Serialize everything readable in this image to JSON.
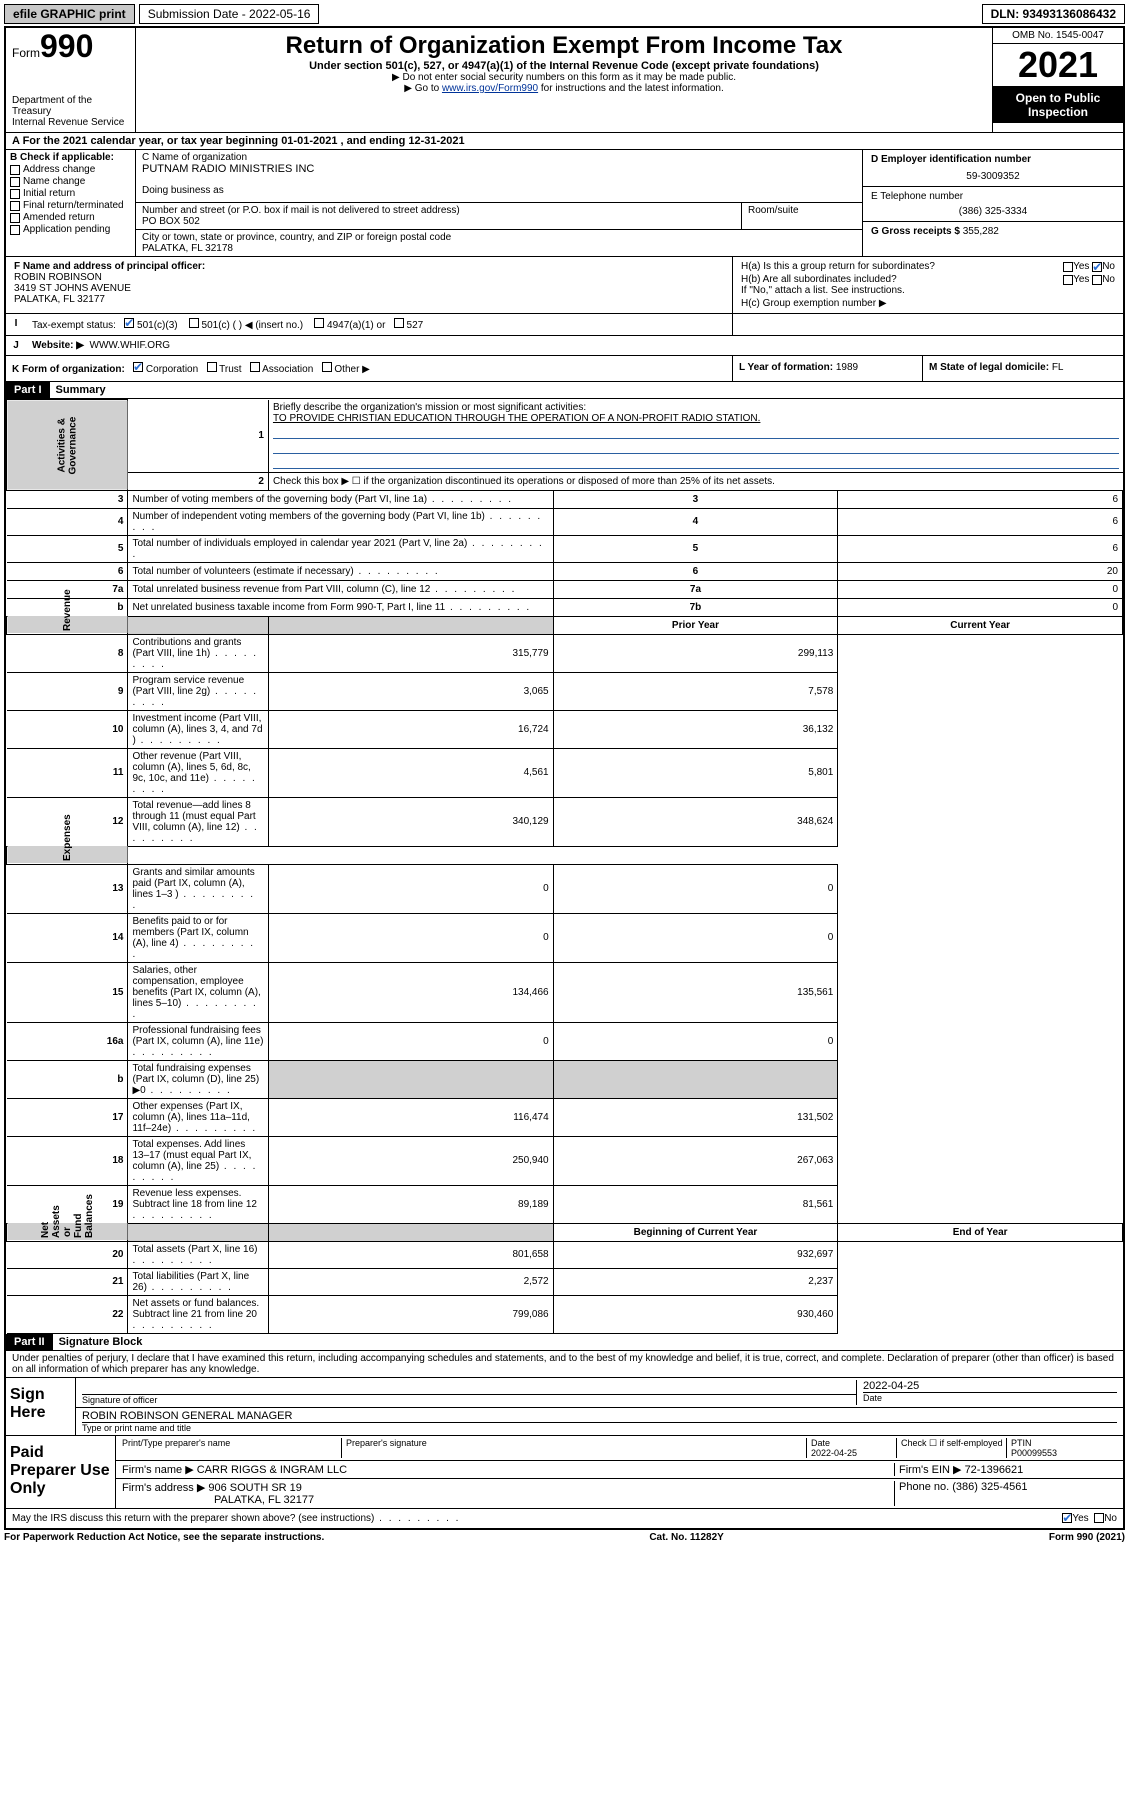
{
  "topbar": {
    "efile_label": "efile GRAPHIC print",
    "submission_label": "Submission Date - 2022-05-16",
    "dln_label": "DLN: 93493136086432"
  },
  "header": {
    "form_word": "Form",
    "form_num": "990",
    "dept": "Department of the Treasury",
    "irs": "Internal Revenue Service",
    "title": "Return of Organization Exempt From Income Tax",
    "sub1": "Under section 501(c), 527, or 4947(a)(1) of the Internal Revenue Code (except private foundations)",
    "sub2": "▶ Do not enter social security numbers on this form as it may be made public.",
    "sub3_pre": "▶ Go to ",
    "sub3_link": "www.irs.gov/Form990",
    "sub3_post": " for instructions and the latest information.",
    "omb": "OMB No. 1545-0047",
    "year": "2021",
    "open1": "Open to Public",
    "open2": "Inspection"
  },
  "row_a": "A For the 2021 calendar year, or tax year beginning 01-01-2021   , and ending 12-31-2021",
  "col_b": {
    "hdr": "B Check if applicable:",
    "items": [
      "Address change",
      "Name change",
      "Initial return",
      "Final return/terminated",
      "Amended return",
      "Application pending"
    ]
  },
  "col_c": {
    "name_lbl": "C Name of organization",
    "name": "PUTNAM RADIO MINISTRIES INC",
    "dba_lbl": "Doing business as",
    "street_lbl": "Number and street (or P.O. box if mail is not delivered to street address)",
    "room_lbl": "Room/suite",
    "street": "PO BOX 502",
    "city_lbl": "City or town, state or province, country, and ZIP or foreign postal code",
    "city": "PALATKA, FL  32178"
  },
  "col_d": {
    "ein_lbl": "D Employer identification number",
    "ein": "59-3009352",
    "tel_lbl": "E Telephone number",
    "tel": "(386) 325-3334",
    "gross_lbl": "G Gross receipts $ ",
    "gross": "355,282"
  },
  "col_f": {
    "lbl": "F  Name and address of principal officer:",
    "name": "ROBIN ROBINSON",
    "addr1": "3419 ST JOHNS AVENUE",
    "addr2": "PALATKA, FL  32177"
  },
  "col_h": {
    "ha": "H(a)  Is this a group return for subordinates?",
    "hb": "H(b)  Are all subordinates included?",
    "hb_note": "If \"No,\" attach a list. See instructions.",
    "hc": "H(c)  Group exemption number ▶",
    "yes": "Yes",
    "no": "No"
  },
  "row_i": {
    "lbl": "Tax-exempt status:",
    "c3": "501(c)(3)",
    "c": "501(c) (   ) ◀ (insert no.)",
    "a1": "4947(a)(1) or",
    "s527": "527"
  },
  "row_j": {
    "lbl": "Website: ▶",
    "val": "WWW.WHIF.ORG"
  },
  "row_k": {
    "lbl": "K Form of organization:",
    "corp": "Corporation",
    "trust": "Trust",
    "assoc": "Association",
    "other": "Other ▶",
    "year_lbl": "L Year of formation: ",
    "year": "1989",
    "state_lbl": "M State of legal domicile: ",
    "state": "FL"
  },
  "part1": {
    "hdr": "Part I",
    "title": "Summary",
    "q1": "Briefly describe the organization's mission or most significant activities:",
    "mission": "TO PROVIDE CHRISTIAN EDUCATION THROUGH THE OPERATION OF A NON-PROFIT RADIO STATION.",
    "q2": "Check this box ▶ ☐  if the organization discontinued its operations or disposed of more than 25% of its net assets.",
    "side_ag": "Activities & Governance",
    "side_rev": "Revenue",
    "side_exp": "Expenses",
    "side_nab": "Net Assets or Fund Balances",
    "rows_ag": [
      {
        "n": "3",
        "d": "Number of voting members of the governing body (Part VI, line 1a)",
        "box": "3",
        "v": "6"
      },
      {
        "n": "4",
        "d": "Number of independent voting members of the governing body (Part VI, line 1b)",
        "box": "4",
        "v": "6"
      },
      {
        "n": "5",
        "d": "Total number of individuals employed in calendar year 2021 (Part V, line 2a)",
        "box": "5",
        "v": "6"
      },
      {
        "n": "6",
        "d": "Total number of volunteers (estimate if necessary)",
        "box": "6",
        "v": "20"
      },
      {
        "n": "7a",
        "d": "Total unrelated business revenue from Part VIII, column (C), line 12",
        "box": "7a",
        "v": "0"
      },
      {
        "n": "b",
        "d": "Net unrelated business taxable income from Form 990-T, Part I, line 11",
        "box": "7b",
        "v": "0"
      }
    ],
    "col_prior": "Prior Year",
    "col_curr": "Current Year",
    "rows_rev": [
      {
        "n": "8",
        "d": "Contributions and grants (Part VIII, line 1h)",
        "p": "315,779",
        "c": "299,113"
      },
      {
        "n": "9",
        "d": "Program service revenue (Part VIII, line 2g)",
        "p": "3,065",
        "c": "7,578"
      },
      {
        "n": "10",
        "d": "Investment income (Part VIII, column (A), lines 3, 4, and 7d )",
        "p": "16,724",
        "c": "36,132"
      },
      {
        "n": "11",
        "d": "Other revenue (Part VIII, column (A), lines 5, 6d, 8c, 9c, 10c, and 11e)",
        "p": "4,561",
        "c": "5,801"
      },
      {
        "n": "12",
        "d": "Total revenue—add lines 8 through 11 (must equal Part VIII, column (A), line 12)",
        "p": "340,129",
        "c": "348,624"
      }
    ],
    "rows_exp": [
      {
        "n": "13",
        "d": "Grants and similar amounts paid (Part IX, column (A), lines 1–3 )",
        "p": "0",
        "c": "0"
      },
      {
        "n": "14",
        "d": "Benefits paid to or for members (Part IX, column (A), line 4)",
        "p": "0",
        "c": "0"
      },
      {
        "n": "15",
        "d": "Salaries, other compensation, employee benefits (Part IX, column (A), lines 5–10)",
        "p": "134,466",
        "c": "135,561"
      },
      {
        "n": "16a",
        "d": "Professional fundraising fees (Part IX, column (A), line 11e)",
        "p": "0",
        "c": "0"
      },
      {
        "n": "b",
        "d": "Total fundraising expenses (Part IX, column (D), line 25) ▶0",
        "p": "",
        "c": "",
        "grey": true
      },
      {
        "n": "17",
        "d": "Other expenses (Part IX, column (A), lines 11a–11d, 11f–24e)",
        "p": "116,474",
        "c": "131,502"
      },
      {
        "n": "18",
        "d": "Total expenses. Add lines 13–17 (must equal Part IX, column (A), line 25)",
        "p": "250,940",
        "c": "267,063"
      },
      {
        "n": "19",
        "d": "Revenue less expenses. Subtract line 18 from line 12",
        "p": "89,189",
        "c": "81,561"
      }
    ],
    "col_begin": "Beginning of Current Year",
    "col_end": "End of Year",
    "rows_nab": [
      {
        "n": "20",
        "d": "Total assets (Part X, line 16)",
        "p": "801,658",
        "c": "932,697"
      },
      {
        "n": "21",
        "d": "Total liabilities (Part X, line 26)",
        "p": "2,572",
        "c": "2,237"
      },
      {
        "n": "22",
        "d": "Net assets or fund balances. Subtract line 21 from line 20",
        "p": "799,086",
        "c": "930,460"
      }
    ]
  },
  "part2": {
    "hdr": "Part II",
    "title": "Signature Block",
    "decl": "Under penalties of perjury, I declare that I have examined this return, including accompanying schedules and statements, and to the best of my knowledge and belief, it is true, correct, and complete. Declaration of preparer (other than officer) is based on all information of which preparer has any knowledge.",
    "sign_here": "Sign Here",
    "sig_officer": "Signature of officer",
    "date_lbl": "Date",
    "sig_date": "2022-04-25",
    "name_title": "ROBIN ROBINSON  GENERAL MANAGER",
    "name_title_lbl": "Type or print name and title",
    "paid": "Paid Preparer Use Only",
    "prep_name_lbl": "Print/Type preparer's name",
    "prep_sig_lbl": "Preparer's signature",
    "prep_date": "2022-04-25",
    "check_self": "Check ☐ if self-employed",
    "ptin_lbl": "PTIN",
    "ptin": "P00099553",
    "firm_name_lbl": "Firm's name    ▶ ",
    "firm_name": "CARR RIGGS & INGRAM LLC",
    "firm_ein_lbl": "Firm's EIN ▶ ",
    "firm_ein": "72-1396621",
    "firm_addr_lbl": "Firm's address ▶ ",
    "firm_addr1": "906 SOUTH SR 19",
    "firm_addr2": "PALATKA, FL  32177",
    "firm_phone_lbl": "Phone no. ",
    "firm_phone": "(386) 325-4561",
    "discuss": "May the IRS discuss this return with the preparer shown above? (see instructions)"
  },
  "footer": {
    "left": "For Paperwork Reduction Act Notice, see the separate instructions.",
    "mid": "Cat. No. 11282Y",
    "right": "Form 990 (2021)"
  }
}
